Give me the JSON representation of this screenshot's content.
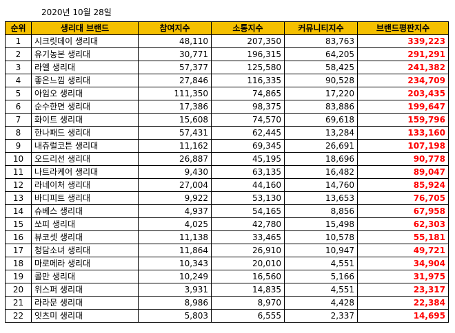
{
  "date": "2020년 10월 28일",
  "table": {
    "headers": [
      "순위",
      "생리대 브랜드",
      "참여지수",
      "소통지수",
      "커뮤니티지수",
      "브랜드평판지수"
    ],
    "rows": [
      [
        "1",
        "시크릿데이 생리대",
        "48,110",
        "207,350",
        "83,763",
        "339,223"
      ],
      [
        "2",
        "유기농본 생리대",
        "30,771",
        "196,315",
        "64,205",
        "291,291"
      ],
      [
        "3",
        "라엘 생리대",
        "57,377",
        "125,580",
        "58,425",
        "241,382"
      ],
      [
        "4",
        "좋은느낌 생리대",
        "27,846",
        "116,335",
        "90,528",
        "234,709"
      ],
      [
        "5",
        "아임오 생리대",
        "111,350",
        "74,865",
        "17,220",
        "203,435"
      ],
      [
        "6",
        "순수한면 생리대",
        "17,386",
        "98,375",
        "83,886",
        "199,647"
      ],
      [
        "7",
        "화이트 생리대",
        "15,608",
        "74,570",
        "69,618",
        "159,796"
      ],
      [
        "8",
        "한나패드 생리대",
        "57,431",
        "62,445",
        "13,284",
        "133,160"
      ],
      [
        "9",
        "내츄럴코튼 생리대",
        "11,162",
        "69,345",
        "26,691",
        "107,198"
      ],
      [
        "10",
        "오드리선 생리대",
        "26,887",
        "45,195",
        "18,696",
        "90,778"
      ],
      [
        "11",
        "나트라케어 생리대",
        "9,430",
        "63,135",
        "16,482",
        "89,047"
      ],
      [
        "12",
        "라네이처 생리대",
        "27,004",
        "44,160",
        "14,760",
        "85,924"
      ],
      [
        "13",
        "바디피트 생리대",
        "9,922",
        "53,130",
        "13,653",
        "76,705"
      ],
      [
        "14",
        "슈베스 생리대",
        "4,937",
        "54,165",
        "8,856",
        "67,958"
      ],
      [
        "15",
        "쏘피 생리대",
        "4,025",
        "42,780",
        "15,498",
        "62,303"
      ],
      [
        "16",
        "뷰코셋 생리대",
        "11,138",
        "33,465",
        "10,578",
        "55,181"
      ],
      [
        "17",
        "청담소녀 생리대",
        "11,864",
        "26,910",
        "10,947",
        "49,721"
      ],
      [
        "18",
        "마로메라 생리대",
        "10,343",
        "20,010",
        "4,551",
        "34,904"
      ],
      [
        "19",
        "콜만 생리대",
        "10,249",
        "16,560",
        "5,166",
        "31,975"
      ],
      [
        "20",
        "위스퍼 생리대",
        "3,931",
        "14,835",
        "4,551",
        "23,317"
      ],
      [
        "21",
        "라라문 생리대",
        "8,986",
        "8,970",
        "4,428",
        "22,384"
      ],
      [
        "22",
        "잇츠미 생리대",
        "5,803",
        "6,555",
        "2,337",
        "14,695"
      ]
    ]
  },
  "colors": {
    "header_bg": "#f5c000",
    "index_text": "#ff0000"
  }
}
